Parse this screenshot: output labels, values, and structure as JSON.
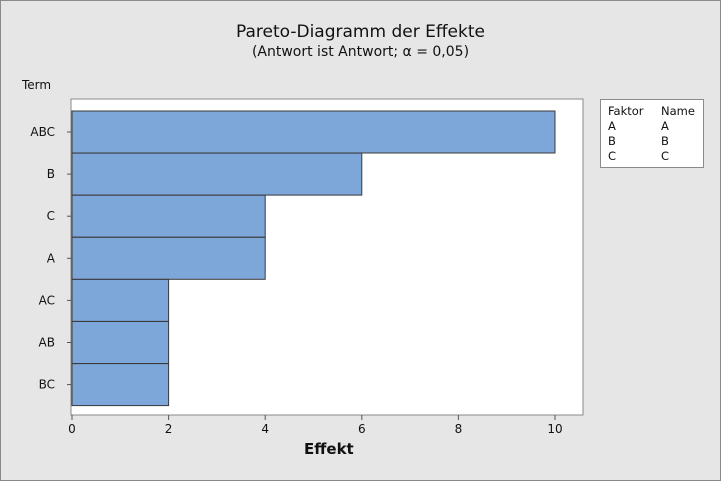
{
  "chart_data": {
    "type": "bar",
    "orientation": "horizontal",
    "title": "Pareto-Diagramm der Effekte",
    "subtitle": "(Antwort ist Antwort; α = 0,05)",
    "ylabel": "Term",
    "xlabel": "Effekt",
    "categories": [
      "ABC",
      "B",
      "C",
      "A",
      "AC",
      "AB",
      "BC"
    ],
    "values": [
      10,
      6,
      4,
      4,
      2,
      2,
      2
    ],
    "xlim": [
      0,
      10.6
    ],
    "xticks": [
      0,
      2,
      4,
      6,
      8,
      10
    ],
    "grid": false,
    "bar_color": "#7da6d9",
    "bar_edge_color": "#3a3a3a",
    "legend": {
      "placement": "right",
      "headers": [
        "Faktor",
        "Name"
      ],
      "rows": [
        [
          "A",
          "A"
        ],
        [
          "B",
          "B"
        ],
        [
          "C",
          "C"
        ]
      ]
    }
  }
}
